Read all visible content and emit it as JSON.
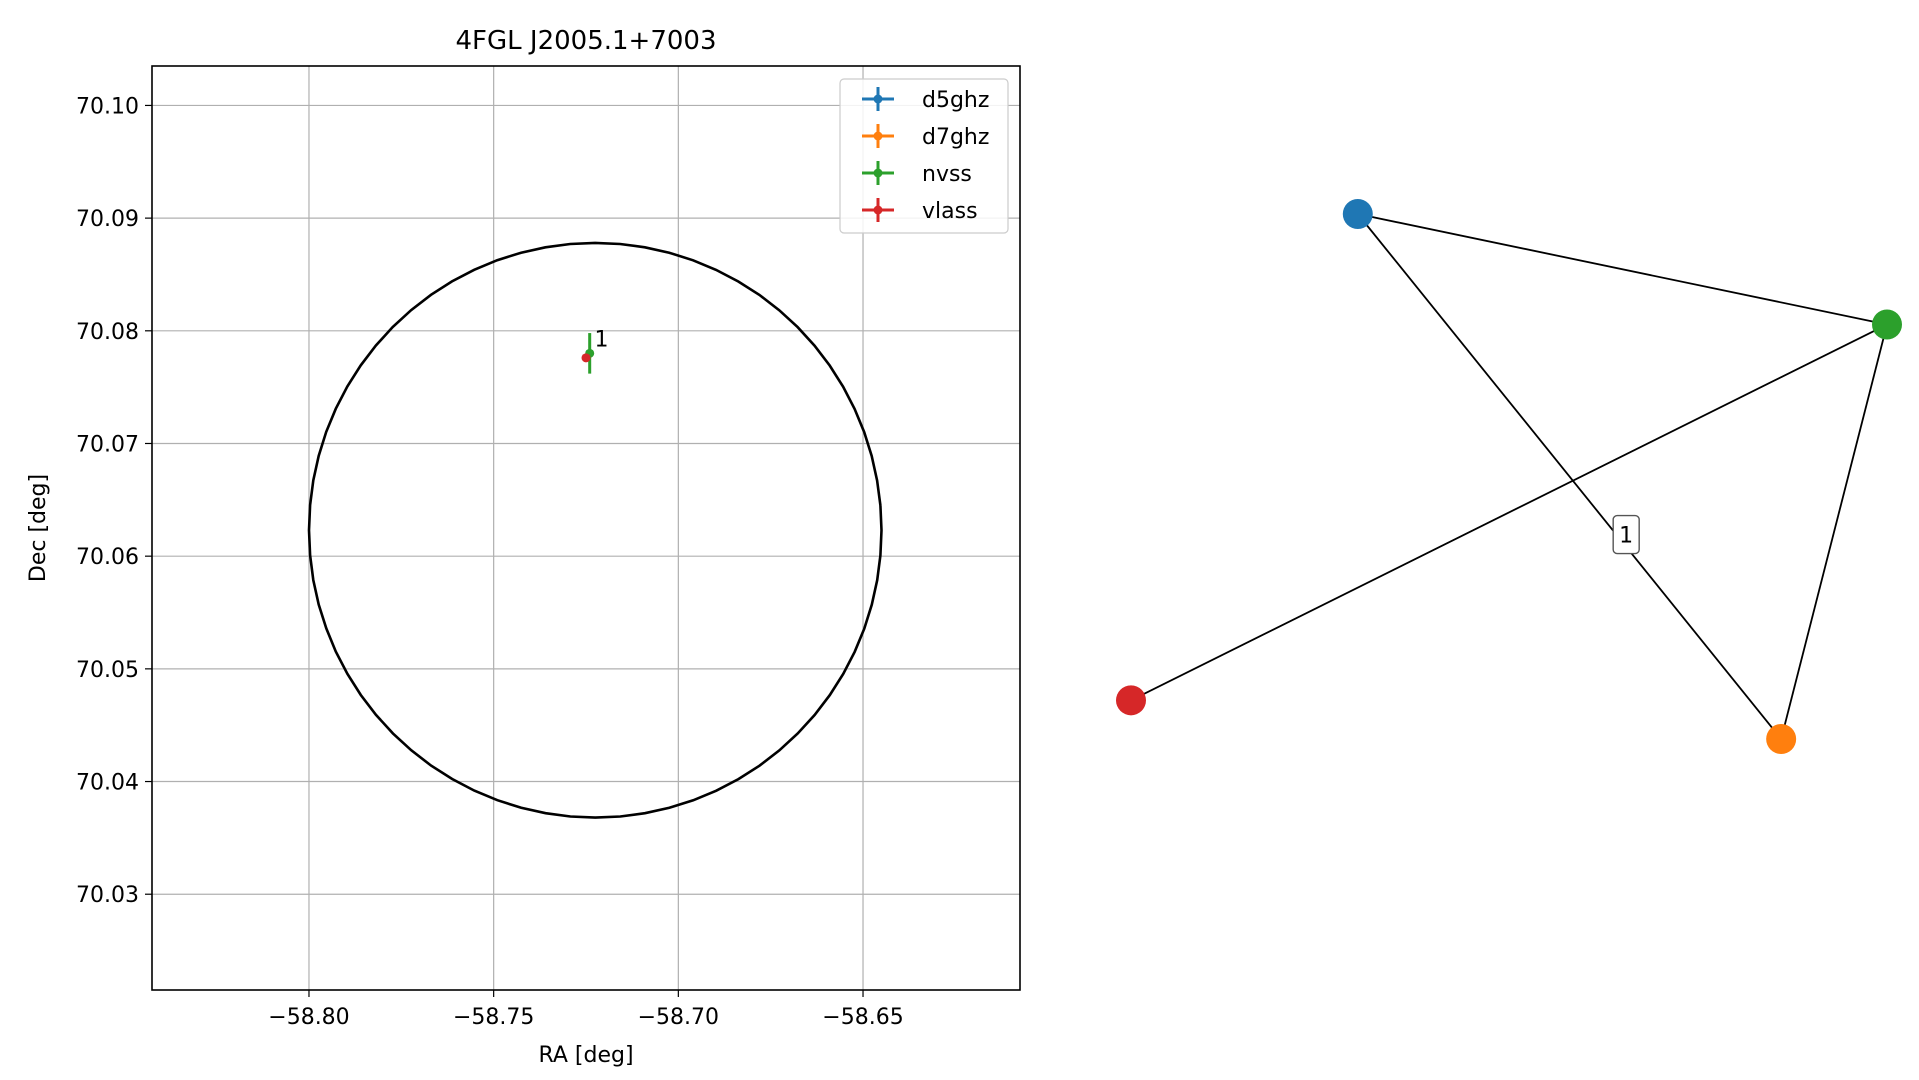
{
  "chart_data": [
    {
      "type": "scatter",
      "title": "4FGL J2005.1+7003",
      "xlabel": "RA [deg]",
      "ylabel": "Dec [deg]",
      "xlim": [
        -58.8425,
        -58.6075
      ],
      "ylim": [
        70.0215,
        70.1035
      ],
      "xticks": [
        -58.8,
        -58.75,
        -58.7,
        -58.65
      ],
      "xtick_labels": [
        "−58.80",
        "−58.75",
        "−58.70",
        "−58.65"
      ],
      "yticks": [
        70.03,
        70.04,
        70.05,
        70.06,
        70.07,
        70.08,
        70.09,
        70.1
      ],
      "ytick_labels": [
        "70.03",
        "70.04",
        "70.05",
        "70.06",
        "70.07",
        "70.08",
        "70.09",
        "70.10"
      ],
      "grid": true,
      "legend_position": "top-right",
      "series": [
        {
          "name": "d5ghz",
          "color": "#1f77b4",
          "points": []
        },
        {
          "name": "d7ghz",
          "color": "#ff7f0e",
          "points": []
        },
        {
          "name": "nvss",
          "color": "#2ca02c",
          "points": [
            {
              "x": -58.724,
              "y": 70.078,
              "xerr": 0.0003,
              "yerr": 0.0018
            }
          ]
        },
        {
          "name": "vlass",
          "color": "#d62728",
          "points": [
            {
              "x": -58.725,
              "y": 70.0776,
              "xerr": 0.0001,
              "yerr": 0.0001
            }
          ]
        }
      ],
      "annotations": [
        {
          "text": "1",
          "x": -58.7227,
          "y": 70.0786
        }
      ],
      "ellipse": {
        "color": "#000000",
        "center_x": -58.7225,
        "center_y": 70.0623,
        "rx": 0.0775,
        "ry": 0.0255,
        "rotation_deg": -5
      }
    },
    {
      "type": "network",
      "nodes": [
        {
          "id": "d5ghz",
          "color": "#1f77b4",
          "x": 0.3,
          "y": 0.88
        },
        {
          "id": "nvss",
          "color": "#2ca02c",
          "x": 1.0,
          "y": 0.68
        },
        {
          "id": "vlass",
          "color": "#d62728",
          "x": 0.0,
          "y": 0.0
        },
        {
          "id": "d7ghz",
          "color": "#ff7f0e",
          "x": 0.86,
          "y": -0.07
        }
      ],
      "edges": [
        {
          "source": "d5ghz",
          "target": "nvss"
        },
        {
          "source": "d5ghz",
          "target": "d7ghz"
        },
        {
          "source": "vlass",
          "target": "nvss"
        },
        {
          "source": "d7ghz",
          "target": "nvss"
        }
      ],
      "edge_labels": [
        {
          "text": "1",
          "x": 0.655,
          "y": 0.3
        }
      ]
    }
  ]
}
